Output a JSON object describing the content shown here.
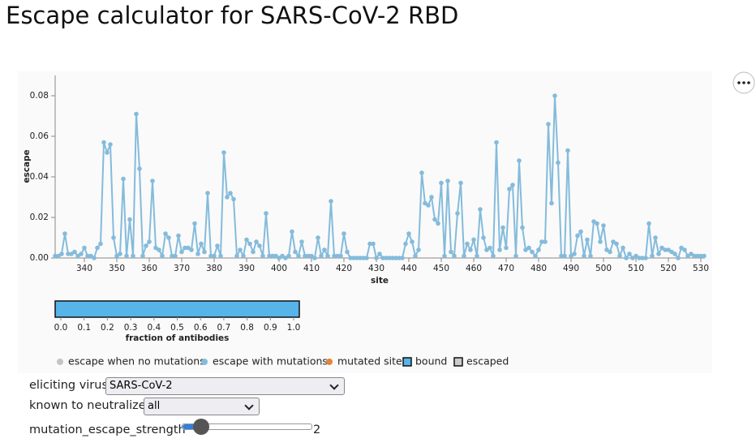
{
  "header": {
    "title": "Escape calculator for SARS-CoV-2 RBD"
  },
  "chart_data": {
    "type": "line",
    "x_label": "site",
    "y_label": "escape",
    "x": [
      331,
      332,
      333,
      334,
      335,
      336,
      337,
      338,
      339,
      340,
      341,
      342,
      343,
      344,
      345,
      346,
      347,
      348,
      349,
      350,
      351,
      352,
      353,
      354,
      355,
      356,
      357,
      358,
      359,
      360,
      361,
      362,
      363,
      364,
      365,
      366,
      367,
      368,
      369,
      370,
      371,
      372,
      373,
      374,
      375,
      376,
      377,
      378,
      379,
      380,
      381,
      382,
      383,
      384,
      385,
      386,
      387,
      388,
      389,
      390,
      391,
      392,
      393,
      394,
      395,
      396,
      397,
      398,
      399,
      400,
      401,
      402,
      403,
      404,
      405,
      406,
      407,
      408,
      409,
      410,
      411,
      412,
      413,
      414,
      415,
      416,
      417,
      418,
      419,
      420,
      421,
      422,
      423,
      424,
      425,
      426,
      427,
      428,
      429,
      430,
      431,
      432,
      433,
      434,
      435,
      436,
      437,
      438,
      439,
      440,
      441,
      442,
      443,
      444,
      445,
      446,
      447,
      448,
      449,
      450,
      451,
      452,
      453,
      454,
      455,
      456,
      457,
      458,
      459,
      460,
      461,
      462,
      463,
      464,
      465,
      466,
      467,
      468,
      469,
      470,
      471,
      472,
      473,
      474,
      475,
      476,
      477,
      478,
      479,
      480,
      481,
      482,
      483,
      484,
      485,
      486,
      487,
      488,
      489,
      490,
      491,
      492,
      493,
      494,
      495,
      496,
      497,
      498,
      499,
      500,
      501,
      502,
      503,
      504,
      505,
      506,
      507,
      508,
      509,
      510,
      511,
      512,
      513,
      514,
      515,
      516,
      517,
      518,
      519,
      520,
      521,
      522,
      523,
      524,
      525,
      526,
      527,
      528,
      529,
      530,
      531
    ],
    "series": [
      {
        "color": "#84bbdb",
        "values": [
          0.001,
          0.001,
          0.002,
          0.012,
          0.002,
          0.002,
          0.003,
          0.001,
          0.002,
          0.005,
          0.001,
          0.001,
          0,
          0.005,
          0.007,
          0.057,
          0.052,
          0.056,
          0.01,
          0.001,
          0.002,
          0.039,
          0.001,
          0.019,
          0.001,
          0.071,
          0.044,
          0.001,
          0.006,
          0.008,
          0.038,
          0.005,
          0.004,
          0.001,
          0.012,
          0.01,
          0.001,
          0.001,
          0.011,
          0.003,
          0.005,
          0.005,
          0.004,
          0.017,
          0.002,
          0.007,
          0.003,
          0.032,
          0.001,
          0.001,
          0.006,
          0.001,
          0.052,
          0.03,
          0.032,
          0.029,
          0.001,
          0.004,
          0.001,
          0.009,
          0.007,
          0.003,
          0.008,
          0.006,
          0.001,
          0.022,
          0.001,
          0.001,
          0.001,
          0,
          0.001,
          0,
          0.001,
          0.013,
          0.003,
          0.001,
          0.008,
          0.001,
          0.001,
          0.001,
          0,
          0.01,
          0.001,
          0.004,
          0.001,
          0.028,
          0.001,
          0.001,
          0.001,
          0.012,
          0.003,
          0,
          0,
          0,
          0,
          0,
          0,
          0.007,
          0.007,
          0,
          0.002,
          0,
          0,
          0,
          0,
          0,
          0,
          0,
          0.007,
          0.012,
          0.008,
          0.001,
          0.004,
          0.042,
          0.027,
          0.026,
          0.03,
          0.019,
          0.017,
          0.037,
          0.001,
          0.038,
          0.003,
          0.001,
          0.022,
          0.037,
          0.001,
          0.007,
          0.004,
          0.009,
          0.001,
          0.024,
          0.01,
          0.004,
          0.005,
          0.001,
          0.057,
          0.004,
          0.015,
          0.005,
          0.034,
          0.036,
          0.001,
          0.048,
          0.015,
          0.004,
          0.005,
          0.003,
          0.001,
          0.004,
          0.008,
          0.008,
          0.066,
          0.027,
          0.08,
          0.047,
          0.001,
          0.001,
          0.053,
          0.001,
          0.002,
          0.011,
          0.013,
          0.001,
          0.009,
          0.001,
          0.018,
          0.017,
          0.008,
          0.016,
          0.004,
          0.003,
          0.008,
          0.007,
          0.001,
          0.005,
          0,
          0.002,
          0,
          0.001,
          0,
          0,
          0,
          0.017,
          0.001,
          0.01,
          0.002,
          0.005,
          0.004,
          0.004,
          0.003,
          0.002,
          0,
          0.005,
          0.004,
          0.001,
          0.002,
          0.001,
          0.001,
          0.001,
          0.001
        ]
      }
    ],
    "xlim": [
      331,
      531
    ],
    "xticks": [
      340,
      350,
      360,
      370,
      380,
      390,
      400,
      410,
      420,
      430,
      440,
      450,
      460,
      470,
      480,
      490,
      500,
      510,
      520,
      530
    ],
    "ylim": [
      0,
      0.09
    ],
    "yticks": [
      {
        "value": 0,
        "label": "0.00"
      },
      {
        "value": 0.02,
        "label": "0.02"
      },
      {
        "value": 0.04,
        "label": "0.04"
      },
      {
        "value": 0.06,
        "label": "0.06"
      },
      {
        "value": 0.08,
        "label": "0.08"
      }
    ],
    "legend": [
      {
        "name": "escape when no mutations",
        "color": "#c4c4c4",
        "shape": "circle"
      },
      {
        "name": "escape with mutations",
        "color": "#84bbdb",
        "shape": "circle"
      },
      {
        "name": "mutated site",
        "color": "#e0853f",
        "shape": "circle"
      },
      {
        "name": "bound",
        "color": "#56b4e9",
        "shape": "square"
      },
      {
        "name": "escaped",
        "color": "#cccccc",
        "shape": "square"
      }
    ]
  },
  "antibody_selector": {
    "axis_title": "fraction of antibodies",
    "xlim": [
      0,
      1
    ],
    "color": "#56b4e9",
    "xticks": [
      {
        "value": 0,
        "label": "0.0"
      },
      0.1,
      0.2,
      0.3,
      0.4,
      0.5,
      0.6,
      0.7,
      0.8,
      0.9,
      {
        "value": 1,
        "label": "1.0"
      }
    ]
  },
  "controls": {
    "virus_label": "eliciting virus",
    "virus_value": "SARS-CoV-2",
    "neutralize_label": "known to neutralize",
    "neutralize_value": "all",
    "strength_label": "mutation_escape_strength",
    "strength_value": 2
  }
}
